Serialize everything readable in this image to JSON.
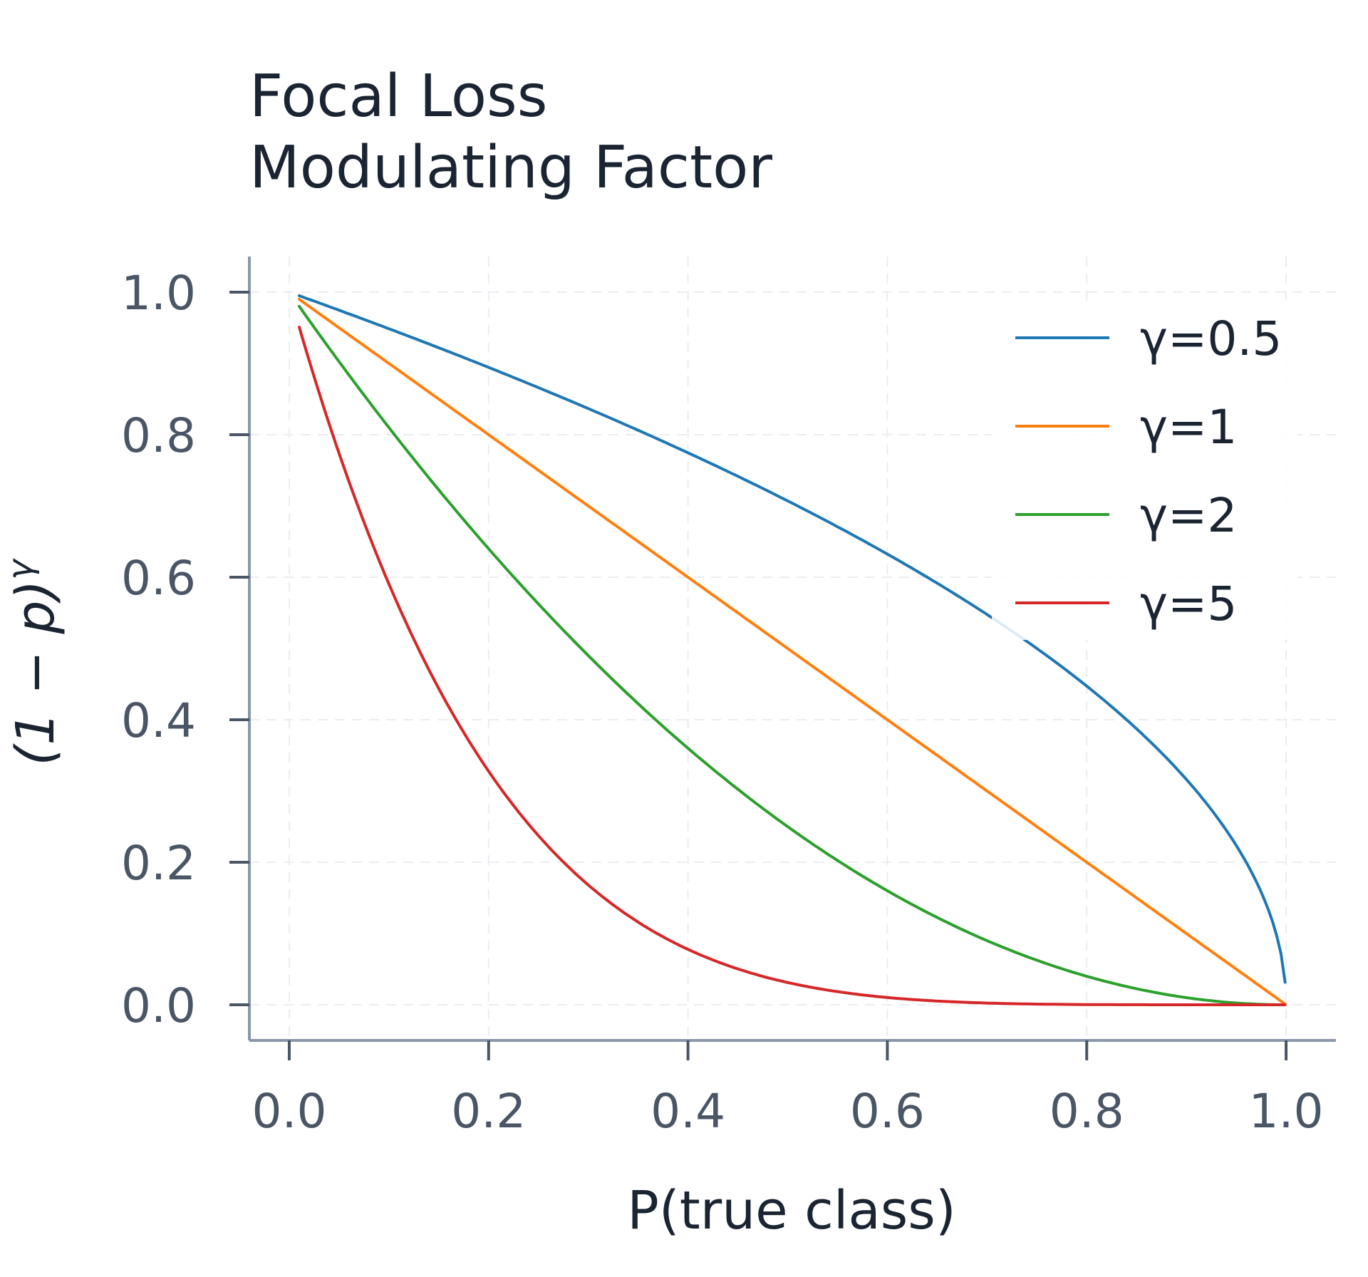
{
  "chart_data": {
    "type": "line",
    "title": [
      "Focal Loss",
      "Modulating Factor"
    ],
    "xlabel": "P(true class)",
    "ylabel": "(1 − p)γ",
    "xlim": [
      -0.04,
      1.05
    ],
    "ylim": [
      -0.05,
      1.05
    ],
    "x_ticks": [
      0.0,
      0.2,
      0.4,
      0.6,
      0.8,
      1.0
    ],
    "y_ticks": [
      0.0,
      0.2,
      0.4,
      0.6,
      0.8,
      1.0
    ],
    "x_tick_labels": [
      "0.0",
      "0.2",
      "0.4",
      "0.6",
      "0.8",
      "1.0"
    ],
    "y_tick_labels": [
      "0.0",
      "0.2",
      "0.4",
      "0.6",
      "0.8",
      "1.0"
    ],
    "grid": true,
    "legend_position": "top-right",
    "x": [
      0.01,
      0.05,
      0.1,
      0.15,
      0.2,
      0.25,
      0.3,
      0.35,
      0.4,
      0.45,
      0.5,
      0.55,
      0.6,
      0.65,
      0.7,
      0.75,
      0.8,
      0.85,
      0.9,
      0.95,
      0.98,
      0.999
    ],
    "series": [
      {
        "name": "γ=0.5",
        "gamma": 0.5,
        "color": "#1f77b4",
        "values": [
          0.995,
          0.975,
          0.949,
          0.922,
          0.894,
          0.866,
          0.837,
          0.806,
          0.775,
          0.742,
          0.707,
          0.671,
          0.632,
          0.592,
          0.548,
          0.5,
          0.447,
          0.387,
          0.316,
          0.224,
          0.141,
          0.032
        ]
      },
      {
        "name": "γ=1",
        "gamma": 1,
        "color": "#ff7f0e",
        "values": [
          0.99,
          0.95,
          0.9,
          0.85,
          0.8,
          0.75,
          0.7,
          0.65,
          0.6,
          0.55,
          0.5,
          0.45,
          0.4,
          0.35,
          0.3,
          0.25,
          0.2,
          0.15,
          0.1,
          0.05,
          0.02,
          0.001
        ]
      },
      {
        "name": "γ=2",
        "gamma": 2,
        "color": "#2ca02c",
        "values": [
          0.98,
          0.903,
          0.81,
          0.723,
          0.64,
          0.563,
          0.49,
          0.423,
          0.36,
          0.303,
          0.25,
          0.203,
          0.16,
          0.123,
          0.09,
          0.063,
          0.04,
          0.023,
          0.01,
          0.003,
          0.0,
          0.0
        ]
      },
      {
        "name": "γ=5",
        "gamma": 5,
        "color": "#d62728",
        "values": [
          0.951,
          0.774,
          0.59,
          0.444,
          0.328,
          0.237,
          0.168,
          0.116,
          0.078,
          0.05,
          0.031,
          0.018,
          0.01,
          0.005,
          0.002,
          0.001,
          0.0,
          0.0,
          0.0,
          0.0,
          0.0,
          0.0
        ]
      }
    ]
  }
}
